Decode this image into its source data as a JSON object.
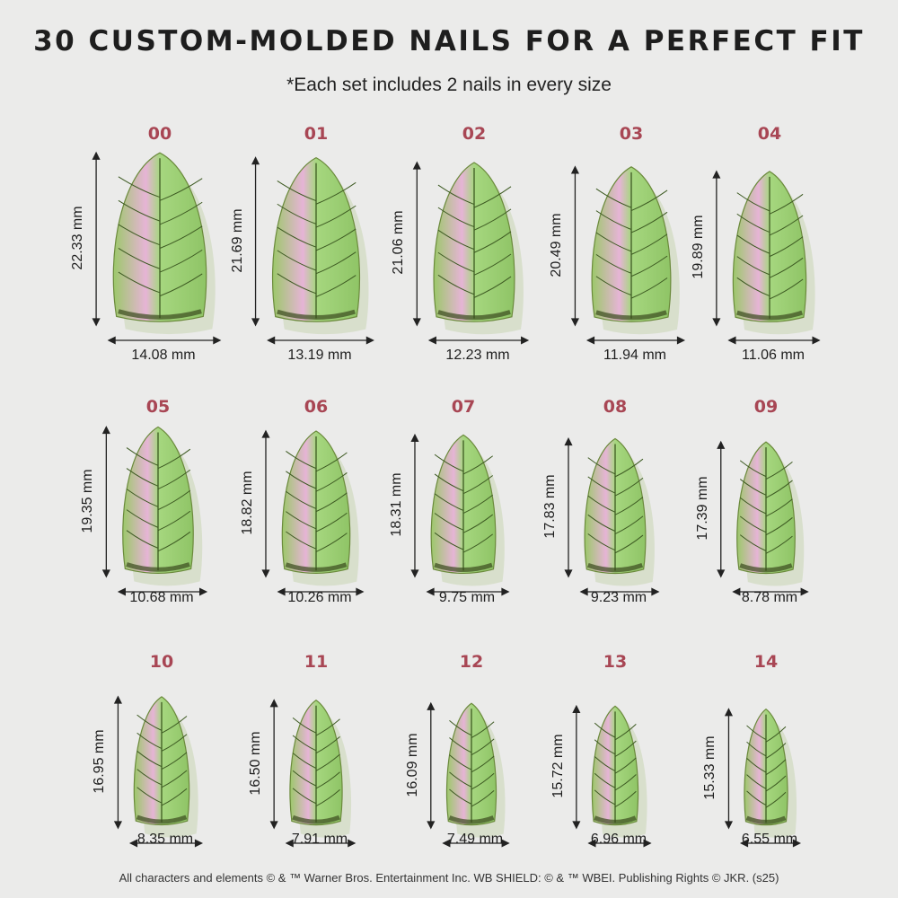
{
  "header": {
    "title": "30 CUSTOM-MOLDED NAILS FOR A PERFECT FIT",
    "subtitle": "*Each set includes 2 nails in every size"
  },
  "colors": {
    "size_label": "#a84654",
    "nail_green": "#a6d77f",
    "nail_vein": "#3d5a22",
    "highlight": "#e6b4d6"
  },
  "nails": [
    {
      "size": "00",
      "length": "22.33 mm",
      "width": "14.08 mm"
    },
    {
      "size": "01",
      "length": "21.69 mm",
      "width": "13.19 mm"
    },
    {
      "size": "02",
      "length": "21.06 mm",
      "width": "12.23 mm"
    },
    {
      "size": "03",
      "length": "20.49 mm",
      "width": "11.94 mm"
    },
    {
      "size": "04",
      "length": "19.89 mm",
      "width": "11.06 mm"
    },
    {
      "size": "05",
      "length": "19.35 mm",
      "width": "10.68 mm"
    },
    {
      "size": "06",
      "length": "18.82 mm",
      "width": "10.26 mm"
    },
    {
      "size": "07",
      "length": "18.31 mm",
      "width": "9.75 mm"
    },
    {
      "size": "08",
      "length": "17.83 mm",
      "width": "9.23 mm"
    },
    {
      "size": "09",
      "length": "17.39 mm",
      "width": "8.78 mm"
    },
    {
      "size": "10",
      "length": "16.95 mm",
      "width": "8.35 mm"
    },
    {
      "size": "11",
      "length": "16.50 mm",
      "width": "7.91 mm"
    },
    {
      "size": "12",
      "length": "16.09 mm",
      "width": "7.49 mm"
    },
    {
      "size": "13",
      "length": "15.72 mm",
      "width": "6.96 mm"
    },
    {
      "size": "14",
      "length": "15.33 mm",
      "width": "6.55 mm"
    }
  ],
  "footer": "All characters and elements © & ™ Warner Bros. Entertainment Inc. WB SHIELD: © & ™ WBEI. Publishing Rights © JKR. (s25)"
}
